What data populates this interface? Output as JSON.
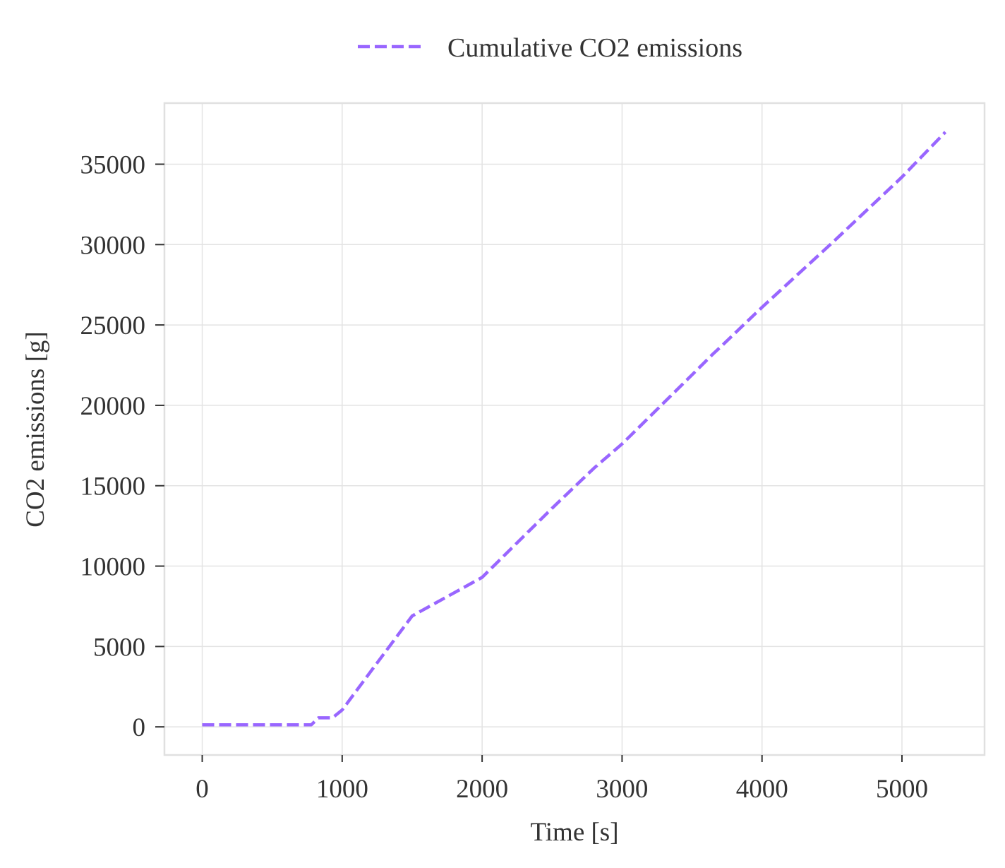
{
  "colors": {
    "series": "#9966ff",
    "grid": "#e3e3e3",
    "frame": "#e0e0e0",
    "text": "#333333"
  },
  "chart_data": {
    "type": "line",
    "title": "",
    "xlabel": "Time [s]",
    "ylabel": "CO2 emissions [g]",
    "xlim": [
      -270,
      5590
    ],
    "ylim": [
      -1750,
      38800
    ],
    "xticks": [
      0,
      1000,
      2000,
      3000,
      4000,
      5000
    ],
    "yticks": [
      0,
      5000,
      10000,
      15000,
      20000,
      25000,
      30000,
      35000
    ],
    "grid": true,
    "legend_position": "top-center-outside",
    "series": [
      {
        "name": "Cumulative CO2 emissions",
        "line_style": "dashed",
        "x": [
          0,
          780,
          830,
          930,
          1000,
          1200,
          1500,
          2000,
          2500,
          2800,
          3000,
          3500,
          3650,
          3700,
          4000,
          4500,
          5000,
          5310
        ],
        "y": [
          130,
          130,
          560,
          560,
          1050,
          3400,
          6900,
          9300,
          13600,
          16100,
          17600,
          21900,
          23200,
          23600,
          26100,
          30100,
          34200,
          37000
        ]
      }
    ]
  }
}
